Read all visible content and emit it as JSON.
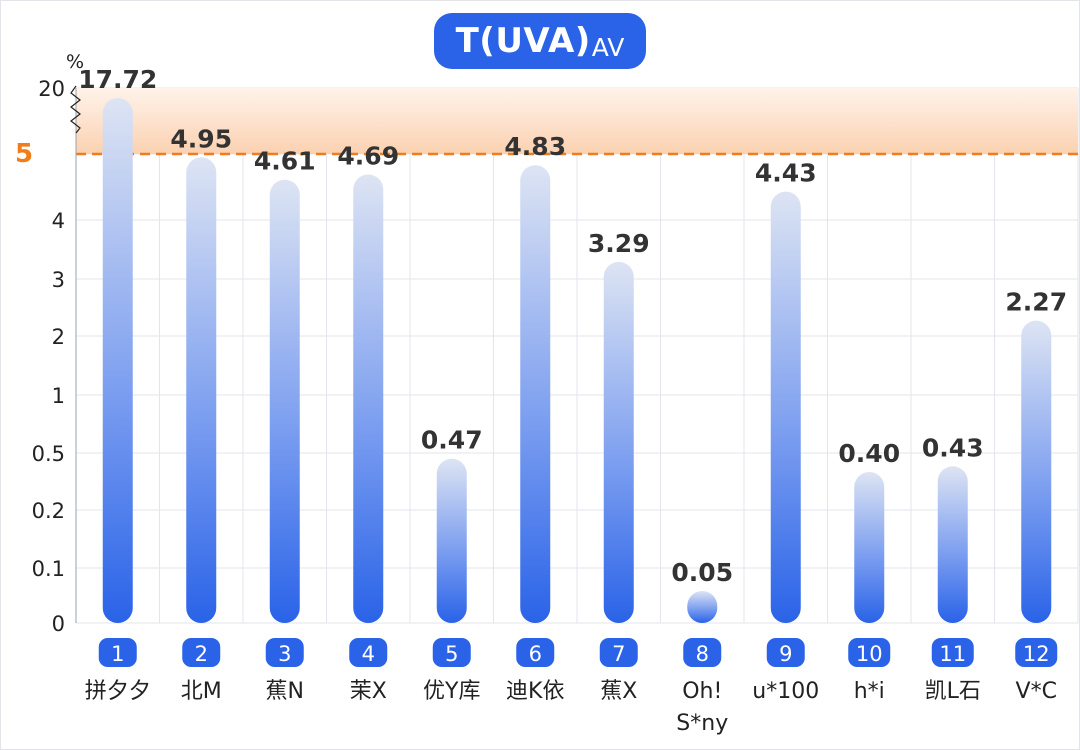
{
  "chart_data": {
    "type": "bar",
    "title": "T(UVA)",
    "title_subscript": "AV",
    "ylabel": "%",
    "y_ticks": [
      "0",
      "0.1",
      "0.2",
      "0.5",
      "1",
      "2",
      "3",
      "4",
      "5",
      "20"
    ],
    "threshold": {
      "value": 5,
      "label": "5",
      "style": "dashed"
    },
    "colors": {
      "bar_top": "#dde4f3",
      "bar_bottom": "#2a63e8",
      "threshold": "#f07d19",
      "band": "#fbd1b1",
      "index_badge": "#2a63e8",
      "grid": "#e2e5ee"
    },
    "categories": [
      {
        "index": "1",
        "name": "拼夕夕",
        "value": 17.72,
        "label": "17.72"
      },
      {
        "index": "2",
        "name": "北M",
        "value": 4.95,
        "label": "4.95"
      },
      {
        "index": "3",
        "name": "蕉N",
        "value": 4.61,
        "label": "4.61"
      },
      {
        "index": "4",
        "name": "茉X",
        "value": 4.69,
        "label": "4.69"
      },
      {
        "index": "5",
        "name": "优Y库",
        "value": 0.47,
        "label": "0.47"
      },
      {
        "index": "6",
        "name": "迪K依",
        "value": 4.83,
        "label": "4.83"
      },
      {
        "index": "7",
        "name": "蕉X",
        "value": 3.29,
        "label": "3.29"
      },
      {
        "index": "8",
        "name": "Oh! S*ny",
        "value": 0.05,
        "label": "0.05"
      },
      {
        "index": "9",
        "name": "u*100",
        "value": 4.43,
        "label": "4.43"
      },
      {
        "index": "10",
        "name": "h*i",
        "value": 0.4,
        "label": "0.40"
      },
      {
        "index": "11",
        "name": "凯L石",
        "value": 0.43,
        "label": "0.43"
      },
      {
        "index": "12",
        "name": "V*C",
        "value": 2.27,
        "label": "2.27"
      }
    ]
  }
}
